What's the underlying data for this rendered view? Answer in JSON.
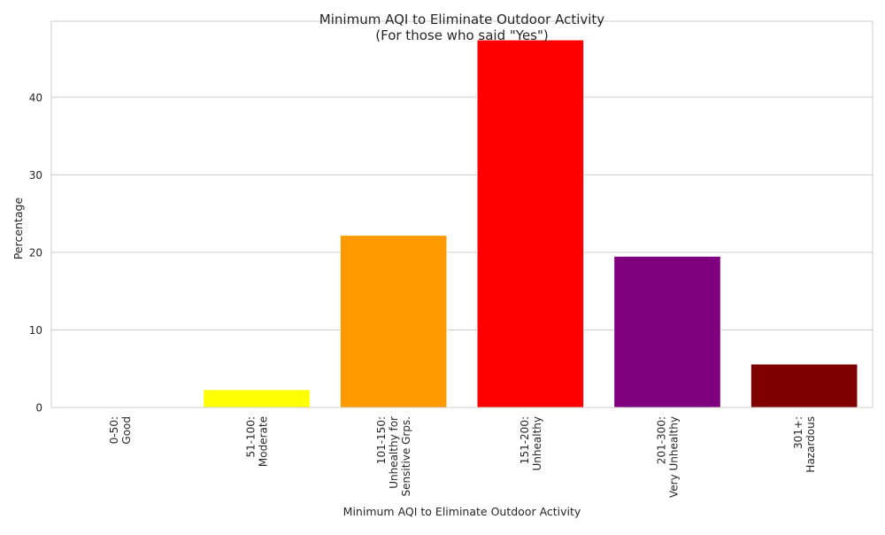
{
  "chart_data": {
    "type": "bar",
    "title": "Minimum AQI to Eliminate Outdoor Activity",
    "subtitle": "(For those who said \"Yes\")",
    "xlabel": "Minimum AQI to Eliminate Outdoor Activity",
    "ylabel": "Percentage",
    "ylim": [
      0,
      49.8
    ],
    "yticks": [
      0,
      10,
      20,
      30,
      40
    ],
    "grid": "horizontal",
    "categories": [
      [
        "0-50:",
        "Good"
      ],
      [
        "51-100:",
        "Moderate"
      ],
      [
        "101-150:",
        "Unhealthy for",
        "Sensitive Grps."
      ],
      [
        "151-200:",
        "Unhealthy"
      ],
      [
        "201-300:",
        "Very Unhealthy"
      ],
      [
        "301+:",
        "Hazardous"
      ]
    ],
    "values": [
      0,
      2.3,
      22.2,
      47.4,
      19.5,
      5.6
    ],
    "colors": [
      "#00e400",
      "#ffff00",
      "#ff9900",
      "#ff0000",
      "#7f007f",
      "#7e0000"
    ]
  }
}
